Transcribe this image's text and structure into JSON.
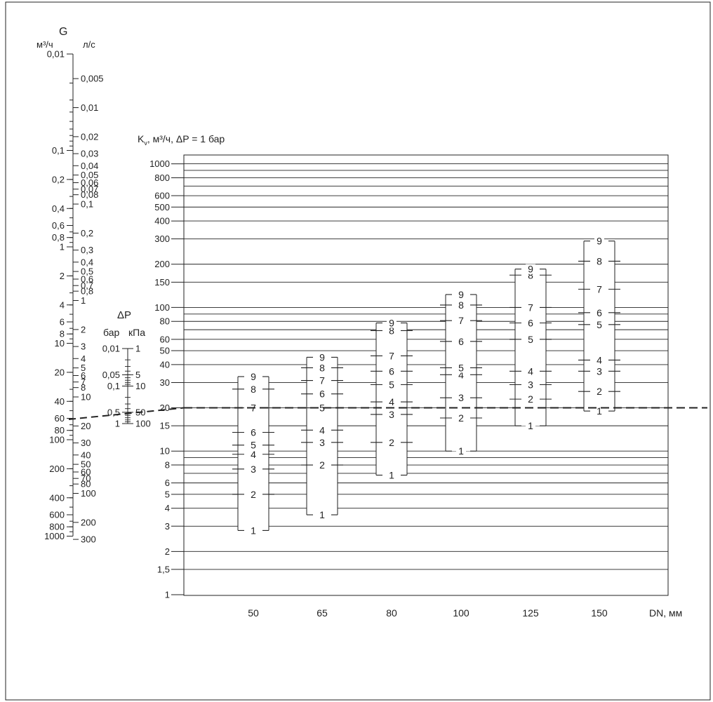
{
  "chart_data": {
    "type": "nomogram",
    "flow_scale": {
      "title": "G",
      "unit_m3h": "м³/ч",
      "unit_ls": "л/с",
      "labels_m3h": [
        "0,01",
        "0,1",
        "0,2",
        "0,4",
        "0,6",
        "0,8",
        "1",
        "2",
        "4",
        "6",
        "8",
        "10",
        "20",
        "40",
        "60",
        "80",
        "100",
        "200",
        "400",
        "600",
        "800",
        "1000"
      ],
      "labels_ls": [
        "0,005",
        "0,01",
        "0,02",
        "0,03",
        "0,04",
        "0,05",
        "0,06",
        "0,07",
        "0,08",
        "0,1",
        "0,2",
        "0,3",
        "0,4",
        "0,5",
        "0,6",
        "0,7",
        "0,8",
        "1",
        "2",
        "3",
        "4",
        "5",
        "6",
        "7",
        "8",
        "10",
        "20",
        "30",
        "40",
        "50",
        "60",
        "70",
        "80",
        "100",
        "200",
        "300"
      ]
    },
    "dp_scale": {
      "title": "ΔP",
      "unit_bar": "бар",
      "unit_kpa": "кПа",
      "labels_bar": [
        "0,01",
        "0,05",
        "0,1",
        "0,5",
        "1"
      ],
      "labels_kpa": [
        "1",
        "5",
        "10",
        "50",
        "100"
      ]
    },
    "kv_chart": {
      "title": "K",
      "title_sub": "v",
      "title_rest": ", м³/ч, ΔP = 1 бар",
      "y_scale": "log",
      "ylim": [
        1,
        1000
      ],
      "y_ticks": [
        "1",
        "1,5",
        "2",
        "3",
        "4",
        "5",
        "6",
        "8",
        "10",
        "15",
        "20",
        "30",
        "40",
        "50",
        "60",
        "80",
        "100",
        "150",
        "200",
        "300",
        "400",
        "500",
        "600",
        "800",
        "1000"
      ],
      "x_label": "DN, мм",
      "bar_labels": [
        "1",
        "2",
        "3",
        "4",
        "5",
        "6",
        "7",
        "8",
        "9"
      ],
      "valves": [
        {
          "dn": "50",
          "kv": [
            2.8,
            5.0,
            7.5,
            9.5,
            11.0,
            13.5,
            20,
            27,
            33
          ]
        },
        {
          "dn": "65",
          "kv": [
            3.6,
            8.0,
            11.5,
            14.0,
            20,
            25,
            31,
            38,
            45
          ]
        },
        {
          "dn": "80",
          "kv": [
            6.8,
            11.5,
            18,
            22,
            29,
            36,
            46,
            69,
            78
          ]
        },
        {
          "dn": "100",
          "kv": [
            10,
            17,
            23.5,
            34,
            38,
            58,
            81,
            104,
            123
          ]
        },
        {
          "dn": "125",
          "kv": [
            15,
            23,
            29,
            36,
            60,
            78,
            100,
            168,
            185
          ]
        },
        {
          "dn": "150",
          "kv": [
            19,
            26,
            36,
            43,
            76,
            92,
            134,
            210,
            290
          ]
        }
      ],
      "reference_kv": 20
    }
  }
}
